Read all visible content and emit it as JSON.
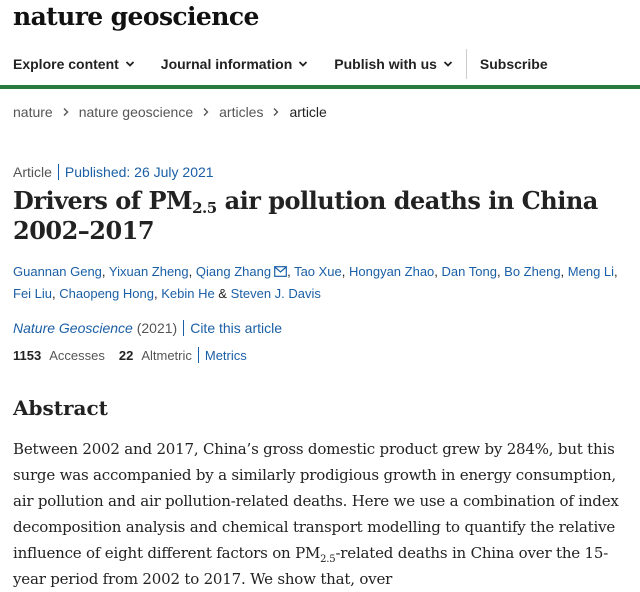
{
  "brand": "nature geoscience",
  "nav": {
    "explore": "Explore content",
    "journal_info": "Journal information",
    "publish": "Publish with us",
    "subscribe": "Subscribe"
  },
  "breadcrumb": [
    "nature",
    "nature geoscience",
    "articles",
    "article"
  ],
  "article": {
    "type": "Article",
    "published": "Published: 26 July 2021",
    "title_pre": "Drivers of PM",
    "title_sub": "2.5",
    "title_post": " air pollution deaths in China 2002–2017",
    "authors": [
      "Guannan Geng",
      "Yixuan Zheng",
      "Qiang Zhang",
      "Tao Xue",
      "Hongyan Zhao",
      "Dan Tong",
      "Bo Zheng",
      "Meng Li",
      "Fei Liu",
      "Chaopeng Hong",
      "Kebin He",
      "Steven J. Davis"
    ],
    "journal": "Nature Geoscience",
    "year": "(2021)",
    "cite": "Cite this article",
    "accesses_num": "1153",
    "accesses_label": "Accesses",
    "altmetric_num": "22",
    "altmetric_label": "Altmetric",
    "metrics_link": "Metrics"
  },
  "abstract": {
    "heading": "Abstract",
    "text_1": "Between 2002 and 2017, China’s gross domestic product grew by 284%, but this surge was accompanied by a similarly prodigious growth in energy consumption, air pollution and air pollution-related deaths. Here we use a combination of index decomposition analysis and chemical transport modelling to quantify the relative influence of eight different factors on PM",
    "text_sub": "2.5",
    "text_2": "-related deaths in China over the 15-year period from 2002 to 2017. We show that, over"
  }
}
